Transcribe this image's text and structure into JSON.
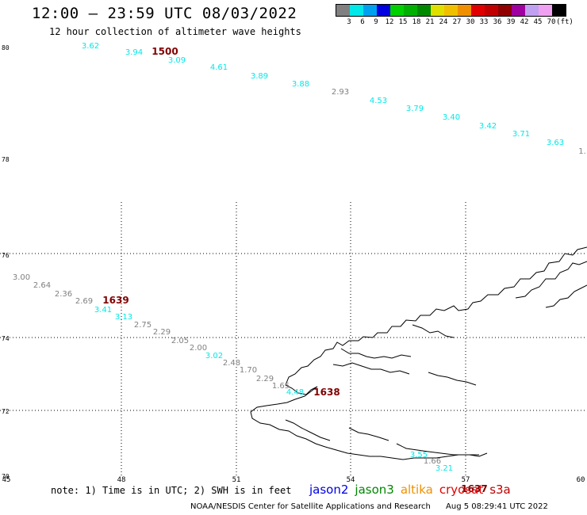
{
  "title": "12:00 – 23:59 UTC 08/03/2022",
  "subtitle": "12 hour collection of altimeter wave heights",
  "legend": {
    "colors": [
      "#808080",
      "#00e8e8",
      "#00a0f0",
      "#0000e0",
      "#00d000",
      "#00b000",
      "#008800",
      "#e0e000",
      "#f0c000",
      "#f09000",
      "#e00000",
      "#c00000",
      "#900000",
      "#a000a0",
      "#c0a0f0",
      "#f0a0f0",
      "#000000"
    ],
    "labels": [
      "3",
      "6",
      "9",
      "12",
      "15",
      "18",
      "21",
      "24",
      "27",
      "30",
      "33",
      "36",
      "39",
      "42",
      "45",
      "70",
      "(ft)"
    ]
  },
  "lat_labels": [
    "80",
    "78",
    "76",
    "74",
    "72",
    "70"
  ],
  "lon_labels": [
    "45",
    "48",
    "51",
    "54",
    "57",
    "60"
  ],
  "tracks": [
    {
      "time": "1500",
      "points": [
        {
          "v": "3.62",
          "c": "cyan"
        },
        {
          "v": "3.94",
          "c": "cyan"
        },
        {
          "v": "3.09",
          "c": "cyan"
        },
        {
          "v": "4.61",
          "c": "cyan"
        },
        {
          "v": "3.89",
          "c": "cyan"
        },
        {
          "v": "3.88",
          "c": "cyan"
        },
        {
          "v": "2.93",
          "c": "gray"
        },
        {
          "v": "4.53",
          "c": "cyan"
        },
        {
          "v": "3.79",
          "c": "cyan"
        },
        {
          "v": "3.40",
          "c": "cyan"
        },
        {
          "v": "3.42",
          "c": "cyan"
        },
        {
          "v": "3.71",
          "c": "cyan"
        },
        {
          "v": "3.63",
          "c": "cyan"
        },
        {
          "v": "1.",
          "c": "gray"
        }
      ]
    },
    {
      "time": "1639",
      "points": [
        {
          "v": "3.00",
          "c": "gray"
        },
        {
          "v": "2.64",
          "c": "gray"
        },
        {
          "v": "2.36",
          "c": "gray"
        },
        {
          "v": "2.69",
          "c": "gray"
        },
        {
          "v": "3.41",
          "c": "cyan"
        },
        {
          "v": "3.13",
          "c": "cyan"
        },
        {
          "v": "2.75",
          "c": "gray"
        },
        {
          "v": "2.29",
          "c": "gray"
        },
        {
          "v": "2.05",
          "c": "gray"
        },
        {
          "v": "2.00",
          "c": "gray"
        },
        {
          "v": "3.02",
          "c": "cyan"
        },
        {
          "v": "2.48",
          "c": "gray"
        },
        {
          "v": "1.70",
          "c": "gray"
        },
        {
          "v": "2.29",
          "c": "gray"
        },
        {
          "v": "1.65",
          "c": "gray"
        },
        {
          "v": "4.48",
          "c": "cyan"
        }
      ]
    },
    {
      "time": "1638",
      "points": []
    },
    {
      "time": "1637",
      "points": [
        {
          "v": "3.55",
          "c": "cyan"
        },
        {
          "v": "1.66",
          "c": "gray"
        },
        {
          "v": "3.21",
          "c": "cyan"
        }
      ]
    }
  ],
  "note": "note: 1) Time is in UTC; 2) SWH is in feet",
  "satellites": [
    {
      "name": "jason2",
      "color": "#0000e0"
    },
    {
      "name": "jason3",
      "color": "#008800"
    },
    {
      "name": "altika",
      "color": "#f09000"
    },
    {
      "name": "cryosat",
      "color": "#e00000"
    },
    {
      "name": "s3a",
      "color": "#c00000"
    }
  ],
  "credit_org": "NOAA/NESDIS Center for Satellite Applications and Research",
  "credit_time": "Aug  5 08:29:41 UTC 2022"
}
